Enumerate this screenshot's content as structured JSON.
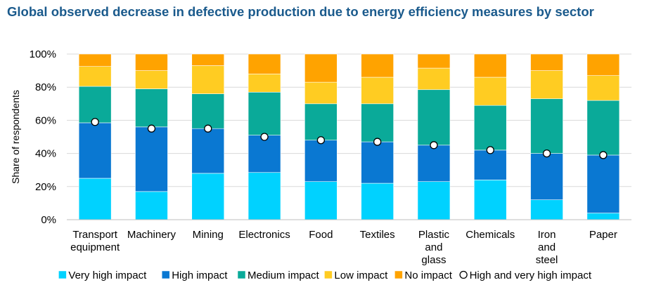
{
  "chart_data": {
    "type": "bar",
    "stacked": true,
    "title": "Global observed decrease in defective production due to energy efficiency measures by sector",
    "xlabel": "",
    "ylabel": "Share of respondents",
    "ylim": [
      0,
      100
    ],
    "yticks": [
      "0%",
      "20%",
      "40%",
      "60%",
      "80%",
      "100%"
    ],
    "grid": "horizontal",
    "legend_position": "bottom",
    "categories": [
      [
        "Transport",
        "equipment"
      ],
      [
        "Machinery"
      ],
      [
        "Mining"
      ],
      [
        "Electronics"
      ],
      [
        "Food"
      ],
      [
        "Textiles"
      ],
      [
        "Plastic",
        "and",
        "glass"
      ],
      [
        "Chemicals"
      ],
      [
        "Iron",
        "and",
        "steel"
      ],
      [
        "Paper"
      ]
    ],
    "series": [
      {
        "name": "Very high impact",
        "color": "#00d2ff",
        "values": [
          25,
          17,
          28,
          28.5,
          23,
          22,
          23,
          24,
          12,
          4
        ]
      },
      {
        "name": "High impact",
        "color": "#0a78d2",
        "values": [
          33.5,
          39,
          27,
          22.5,
          25,
          25,
          22,
          18,
          28,
          35
        ]
      },
      {
        "name": "Medium impact",
        "color": "#0aaa99",
        "values": [
          22,
          23,
          21,
          26,
          22,
          23,
          33.5,
          27,
          33,
          33
        ]
      },
      {
        "name": "Low impact",
        "color": "#ffcc22",
        "values": [
          12,
          11,
          17,
          11,
          13,
          16,
          13,
          17,
          17,
          15
        ]
      },
      {
        "name": "No impact",
        "color": "#ffa300",
        "values": [
          7.5,
          10,
          7,
          12,
          17,
          14,
          8.5,
          14,
          10,
          13
        ]
      }
    ],
    "markers": {
      "name": "High and very high impact",
      "values": [
        59,
        55,
        55,
        50,
        48,
        47,
        45,
        42,
        40,
        39
      ]
    }
  }
}
